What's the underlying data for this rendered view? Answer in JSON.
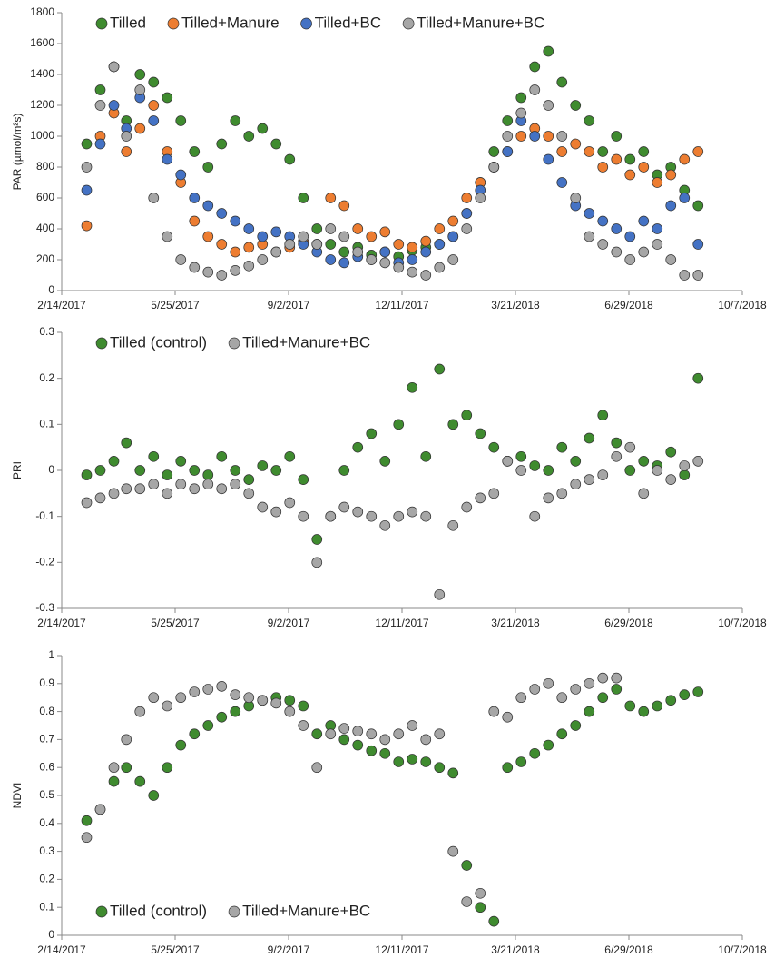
{
  "chart_data": [
    {
      "type": "scatter",
      "ylabel": "PAR (µmol/m²s)",
      "legend": "top-left",
      "xlim": [
        "2/14/2017",
        "10/7/2018"
      ],
      "xticks": [
        "2/14/2017",
        "5/25/2017",
        "9/2/2017",
        "12/11/2017",
        "3/21/2018",
        "6/29/2018",
        "10/7/2018"
      ],
      "ylim": [
        0,
        1800
      ],
      "yticks": [
        0,
        200,
        400,
        600,
        800,
        1000,
        1200,
        1400,
        1600,
        1800
      ],
      "x": [
        "3/8/2017",
        "3/20/2017",
        "4/1/2017",
        "4/12/2017",
        "4/24/2017",
        "5/6/2017",
        "5/18/2017",
        "5/30/2017",
        "6/11/2017",
        "6/23/2017",
        "7/5/2017",
        "7/17/2017",
        "7/29/2017",
        "8/10/2017",
        "8/22/2017",
        "9/3/2017",
        "9/15/2017",
        "9/27/2017",
        "10/9/2017",
        "10/21/2017",
        "11/2/2017",
        "11/14/2017",
        "11/26/2017",
        "12/8/2017",
        "12/20/2017",
        "1/1/2018",
        "1/13/2018",
        "1/25/2018",
        "2/6/2018",
        "2/18/2018",
        "3/2/2018",
        "3/14/2018",
        "3/26/2018",
        "4/7/2018",
        "4/19/2018",
        "5/1/2018",
        "5/13/2018",
        "5/25/2018",
        "6/6/2018",
        "6/18/2018",
        "6/30/2018",
        "7/12/2018",
        "7/24/2018",
        "8/5/2018",
        "8/17/2018",
        "8/29/2018"
      ],
      "series": [
        {
          "name": "Tilled",
          "color": "#3f8b2f",
          "values": [
            950,
            1300,
            1450,
            1100,
            1400,
            1350,
            1250,
            1100,
            900,
            800,
            950,
            1100,
            1000,
            1050,
            950,
            850,
            600,
            400,
            300,
            250,
            280,
            230,
            250,
            220,
            260,
            280,
            300,
            350,
            500,
            700,
            900,
            1100,
            1250,
            1450,
            1550,
            1350,
            1200,
            1100,
            900,
            1000,
            850,
            900,
            750,
            800,
            650,
            550
          ]
        },
        {
          "name": "Tilled+Manure",
          "color": "#ed7d31",
          "values": [
            420,
            1000,
            1150,
            900,
            1050,
            1200,
            900,
            700,
            450,
            350,
            300,
            250,
            280,
            300,
            250,
            280,
            320,
            300,
            600,
            550,
            400,
            350,
            380,
            300,
            280,
            320,
            400,
            450,
            600,
            700,
            800,
            900,
            1000,
            1050,
            1000,
            900,
            950,
            900,
            800,
            850,
            750,
            800,
            700,
            750,
            850,
            900
          ]
        },
        {
          "name": "Tilled+BC",
          "color": "#4472c4",
          "values": [
            650,
            950,
            1200,
            1050,
            1250,
            1100,
            850,
            750,
            600,
            550,
            500,
            450,
            400,
            350,
            380,
            350,
            300,
            250,
            200,
            180,
            220,
            200,
            250,
            180,
            200,
            250,
            300,
            350,
            500,
            650,
            800,
            900,
            1100,
            1000,
            850,
            700,
            550,
            500,
            450,
            400,
            350,
            450,
            400,
            550,
            600,
            300
          ]
        },
        {
          "name": "Tilled+Manure+BC",
          "color": "#a6a6a6",
          "values": [
            800,
            1200,
            1450,
            1000,
            1300,
            600,
            350,
            200,
            150,
            120,
            100,
            130,
            160,
            200,
            250,
            300,
            350,
            300,
            400,
            350,
            250,
            200,
            180,
            150,
            120,
            100,
            150,
            200,
            400,
            600,
            800,
            1000,
            1150,
            1300,
            1200,
            1000,
            600,
            350,
            300,
            250,
            200,
            250,
            300,
            200,
            100,
            100
          ]
        }
      ]
    },
    {
      "type": "scatter",
      "ylabel": "PRI",
      "legend": "top-left",
      "xlim": [
        "2/14/2017",
        "10/7/2018"
      ],
      "xticks": [
        "2/14/2017",
        "5/25/2017",
        "9/2/2017",
        "12/11/2017",
        "3/21/2018",
        "6/29/2018",
        "10/7/2018"
      ],
      "ylim": [
        -0.3,
        0.3
      ],
      "yticks": [
        -0.3,
        -0.2,
        -0.1,
        0,
        0.1,
        0.2,
        0.3
      ],
      "x": [
        "3/8/2017",
        "3/20/2017",
        "4/1/2017",
        "4/12/2017",
        "4/24/2017",
        "5/6/2017",
        "5/18/2017",
        "5/30/2017",
        "6/11/2017",
        "6/23/2017",
        "7/5/2017",
        "7/17/2017",
        "7/29/2017",
        "8/10/2017",
        "8/22/2017",
        "9/3/2017",
        "9/15/2017",
        "9/27/2017",
        "10/9/2017",
        "10/21/2017",
        "11/2/2017",
        "11/14/2017",
        "11/26/2017",
        "12/8/2017",
        "12/20/2017",
        "1/1/2018",
        "1/13/2018",
        "1/25/2018",
        "2/6/2018",
        "2/18/2018",
        "3/2/2018",
        "3/14/2018",
        "3/26/2018",
        "4/7/2018",
        "4/19/2018",
        "5/1/2018",
        "5/13/2018",
        "5/25/2018",
        "6/6/2018",
        "6/18/2018",
        "6/30/2018",
        "7/12/2018",
        "7/24/2018",
        "8/5/2018",
        "8/17/2018",
        "8/29/2018"
      ],
      "series": [
        {
          "name": "Tilled (control)",
          "color": "#3f8b2f",
          "values": [
            -0.01,
            0,
            0.02,
            0.06,
            0,
            0.03,
            -0.01,
            0.02,
            0,
            -0.01,
            0.03,
            0,
            -0.02,
            0.01,
            0,
            0.03,
            -0.02,
            -0.15,
            -0.1,
            0,
            0.05,
            0.08,
            0.02,
            0.1,
            0.18,
            0.03,
            0.22,
            0.1,
            0.12,
            0.08,
            0.05,
            0.02,
            0.03,
            0.01,
            0,
            0.05,
            0.02,
            0.07,
            0.12,
            0.06,
            0,
            0.02,
            0.01,
            0.04,
            -0.01,
            0.2
          ]
        },
        {
          "name": "Tilled+Manure+BC",
          "color": "#a6a6a6",
          "values": [
            -0.07,
            -0.06,
            -0.05,
            -0.04,
            -0.04,
            -0.03,
            -0.05,
            -0.03,
            -0.04,
            -0.03,
            -0.04,
            -0.03,
            -0.05,
            -0.08,
            -0.09,
            -0.07,
            -0.1,
            -0.2,
            -0.1,
            -0.08,
            -0.09,
            -0.1,
            -0.12,
            -0.1,
            -0.09,
            -0.1,
            -0.27,
            -0.12,
            -0.08,
            -0.06,
            -0.05,
            0.02,
            0,
            -0.1,
            -0.06,
            -0.05,
            -0.03,
            -0.02,
            -0.01,
            0.03,
            0.05,
            -0.05,
            0,
            -0.02,
            0.01,
            0.02
          ]
        }
      ]
    },
    {
      "type": "scatter",
      "ylabel": "NDVI",
      "legend": "bottom-left",
      "xlim": [
        "2/14/2017",
        "10/7/2018"
      ],
      "xticks": [
        "2/14/2017",
        "5/25/2017",
        "9/2/2017",
        "12/11/2017",
        "3/21/2018",
        "6/29/2018",
        "10/7/2018"
      ],
      "ylim": [
        0,
        1
      ],
      "yticks": [
        0,
        0.1,
        0.2,
        0.3,
        0.4,
        0.5,
        0.6,
        0.7,
        0.8,
        0.9,
        1
      ],
      "x": [
        "3/8/2017",
        "3/20/2017",
        "4/1/2017",
        "4/12/2017",
        "4/24/2017",
        "5/6/2017",
        "5/18/2017",
        "5/30/2017",
        "6/11/2017",
        "6/23/2017",
        "7/5/2017",
        "7/17/2017",
        "7/29/2017",
        "8/10/2017",
        "8/22/2017",
        "9/3/2017",
        "9/15/2017",
        "9/27/2017",
        "10/9/2017",
        "10/21/2017",
        "11/2/2017",
        "11/14/2017",
        "11/26/2017",
        "12/8/2017",
        "12/20/2017",
        "1/1/2018",
        "1/13/2018",
        "1/25/2018",
        "2/6/2018",
        "2/18/2018",
        "3/2/2018",
        "3/14/2018",
        "3/26/2018",
        "4/7/2018",
        "4/19/2018",
        "5/1/2018",
        "5/13/2018",
        "5/25/2018",
        "6/6/2018",
        "6/18/2018",
        "6/30/2018",
        "7/12/2018",
        "7/24/2018",
        "8/5/2018",
        "8/17/2018",
        "8/29/2018"
      ],
      "series": [
        {
          "name": "Tilled (control)",
          "color": "#3f8b2f",
          "values": [
            0.41,
            0.45,
            0.55,
            0.6,
            0.55,
            0.5,
            0.6,
            0.68,
            0.72,
            0.75,
            0.78,
            0.8,
            0.82,
            0.84,
            0.85,
            0.84,
            0.82,
            0.72,
            0.75,
            0.7,
            0.68,
            0.66,
            0.65,
            0.62,
            0.63,
            0.62,
            0.6,
            0.58,
            0.25,
            0.1,
            0.05,
            0.6,
            0.62,
            0.65,
            0.68,
            0.72,
            0.75,
            0.8,
            0.85,
            0.88,
            0.82,
            0.8,
            0.82,
            0.84,
            0.86,
            0.87
          ]
        },
        {
          "name": "Tilled+Manure+BC",
          "color": "#a6a6a6",
          "values": [
            0.35,
            0.45,
            0.6,
            0.7,
            0.8,
            0.85,
            0.82,
            0.85,
            0.87,
            0.88,
            0.89,
            0.86,
            0.85,
            0.84,
            0.83,
            0.8,
            0.75,
            0.6,
            0.72,
            0.74,
            0.73,
            0.72,
            0.7,
            0.72,
            0.75,
            0.7,
            0.72,
            0.3,
            0.12,
            0.15,
            0.8,
            0.78,
            0.85,
            0.88,
            0.9,
            0.85,
            0.88,
            0.9,
            0.92,
            0.92,
            null,
            null,
            null,
            null,
            null,
            null
          ]
        }
      ]
    }
  ]
}
